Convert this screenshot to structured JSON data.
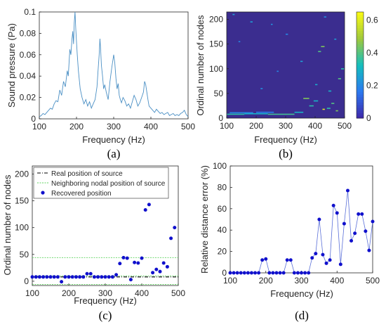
{
  "chart_data": [
    {
      "type": "line",
      "panel": "(a)",
      "xlabel": "Frequency (Hz)",
      "ylabel": "Sound pressure (Pa)",
      "xlim": [
        100,
        500
      ],
      "ylim": [
        0,
        0.1
      ],
      "xticks": [
        "100",
        "200",
        "300",
        "400",
        "500"
      ],
      "yticks": [
        "0",
        "0.02",
        "0.04",
        "0.06",
        "0.08",
        "0.1"
      ],
      "color": "#4a8fc4",
      "x": [
        100,
        105,
        110,
        115,
        120,
        125,
        130,
        135,
        140,
        145,
        150,
        155,
        160,
        165,
        170,
        175,
        178,
        182,
        185,
        188,
        190,
        192,
        194,
        196,
        198,
        200,
        202,
        205,
        210,
        215,
        220,
        225,
        230,
        235,
        240,
        245,
        250,
        255,
        258,
        261,
        263,
        265,
        267,
        270,
        273,
        276,
        280,
        285,
        290,
        295,
        300,
        303,
        306,
        309,
        312,
        315,
        318,
        321,
        325,
        330,
        335,
        340,
        345,
        350,
        355,
        360,
        365,
        370,
        375,
        380,
        383,
        386,
        389,
        392,
        395,
        400,
        405,
        410,
        415,
        420,
        425,
        430,
        435,
        440,
        445,
        450,
        455,
        460,
        465,
        470,
        475,
        480,
        485,
        490,
        495,
        500
      ],
      "y": [
        0.002,
        0.003,
        0.005,
        0.004,
        0.006,
        0.008,
        0.01,
        0.009,
        0.014,
        0.017,
        0.016,
        0.027,
        0.022,
        0.035,
        0.03,
        0.045,
        0.04,
        0.065,
        0.06,
        0.075,
        0.082,
        0.07,
        0.09,
        0.1,
        0.085,
        0.072,
        0.06,
        0.045,
        0.028,
        0.02,
        0.014,
        0.018,
        0.012,
        0.016,
        0.01,
        0.014,
        0.018,
        0.03,
        0.045,
        0.06,
        0.075,
        0.065,
        0.05,
        0.04,
        0.028,
        0.032,
        0.025,
        0.018,
        0.035,
        0.048,
        0.06,
        0.052,
        0.038,
        0.028,
        0.033,
        0.022,
        0.018,
        0.015,
        0.02,
        0.017,
        0.012,
        0.014,
        0.01,
        0.016,
        0.022,
        0.018,
        0.012,
        0.015,
        0.02,
        0.025,
        0.035,
        0.032,
        0.025,
        0.018,
        0.012,
        0.01,
        0.008,
        0.006,
        0.009,
        0.007,
        0.005,
        0.006,
        0.004,
        0.005,
        0.006,
        0.003,
        0.004,
        0.005,
        0.003,
        0.004,
        0.003,
        0.005,
        0.006,
        0.008,
        0.004,
        0.002
      ]
    },
    {
      "type": "heatmap",
      "panel": "(b)",
      "xlabel": "Frequency (Hz)",
      "ylabel": "Ordinal number of nodes",
      "xlim": [
        100,
        500
      ],
      "ylim": [
        0,
        215
      ],
      "xticks": [
        "100",
        "200",
        "300",
        "400",
        "500"
      ],
      "yticks": [
        "0",
        "50",
        "100",
        "150",
        "200"
      ],
      "colorbar_ticks": [
        "0",
        "0.2",
        "0.4",
        "0.6"
      ],
      "colorbar_range": [
        0,
        0.65
      ],
      "base_color": "#3b2d8f",
      "streaks": [
        {
          "x0": 100,
          "x1": 160,
          "y": 8,
          "v": 0.35
        },
        {
          "x0": 160,
          "x1": 240,
          "y": 9,
          "v": 0.3
        },
        {
          "x0": 240,
          "x1": 330,
          "y": 8,
          "v": 0.38
        },
        {
          "x0": 110,
          "x1": 190,
          "y": 11,
          "v": 0.2
        },
        {
          "x0": 200,
          "x1": 260,
          "y": 12,
          "v": 0.18
        },
        {
          "x0": 330,
          "x1": 360,
          "y": 12,
          "v": 0.3
        },
        {
          "x0": 360,
          "x1": 380,
          "y": 40,
          "v": 0.45
        },
        {
          "x0": 380,
          "x1": 395,
          "y": 25,
          "v": 0.35
        },
        {
          "x0": 395,
          "x1": 410,
          "y": 35,
          "v": 0.3
        },
        {
          "x0": 410,
          "x1": 420,
          "y": 135,
          "v": 0.4
        },
        {
          "x0": 420,
          "x1": 432,
          "y": 145,
          "v": 0.45
        },
        {
          "x0": 440,
          "x1": 452,
          "y": 20,
          "v": 0.35
        },
        {
          "x0": 455,
          "x1": 465,
          "y": 30,
          "v": 0.4
        },
        {
          "x0": 478,
          "x1": 488,
          "y": 80,
          "v": 0.4
        },
        {
          "x0": 488,
          "x1": 498,
          "y": 100,
          "v": 0.35
        },
        {
          "x0": 180,
          "x1": 188,
          "y": 195,
          "v": 0.25
        },
        {
          "x0": 250,
          "x1": 256,
          "y": 190,
          "v": 0.22
        },
        {
          "x0": 300,
          "x1": 308,
          "y": 170,
          "v": 0.2
        },
        {
          "x0": 140,
          "x1": 146,
          "y": 155,
          "v": 0.2
        },
        {
          "x0": 350,
          "x1": 358,
          "y": 115,
          "v": 0.25
        },
        {
          "x0": 400,
          "x1": 408,
          "y": 68,
          "v": 0.28
        },
        {
          "x0": 430,
          "x1": 438,
          "y": 205,
          "v": 0.22
        },
        {
          "x0": 465,
          "x1": 472,
          "y": 160,
          "v": 0.25
        },
        {
          "x0": 215,
          "x1": 222,
          "y": 60,
          "v": 0.22
        },
        {
          "x0": 270,
          "x1": 276,
          "y": 95,
          "v": 0.2
        },
        {
          "x0": 120,
          "x1": 127,
          "y": 210,
          "v": 0.25
        },
        {
          "x0": 445,
          "x1": 455,
          "y": 55,
          "v": 0.3
        },
        {
          "x0": 470,
          "x1": 478,
          "y": 15,
          "v": 0.45
        },
        {
          "x0": 425,
          "x1": 433,
          "y": 18,
          "v": 0.6
        }
      ]
    },
    {
      "type": "scatter",
      "panel": "(c)",
      "xlabel": "Frequency (Hz)",
      "ylabel": "Ordinal number of nodes",
      "xlim": [
        100,
        500
      ],
      "ylim": [
        -8,
        215
      ],
      "xticks": [
        "100",
        "200",
        "300",
        "400",
        "500"
      ],
      "yticks": [
        "0",
        "50",
        "100",
        "150",
        "200"
      ],
      "legend": [
        "Real position of source",
        "Neighboring nodal position of source",
        "Recovered position"
      ],
      "real_position": 8,
      "neighbor_positions": [
        -6,
        10,
        44
      ],
      "series": [
        {
          "name": "Recovered position",
          "x": [
            100,
            110,
            120,
            130,
            140,
            150,
            160,
            170,
            180,
            190,
            200,
            210,
            220,
            230,
            240,
            250,
            260,
            270,
            280,
            290,
            300,
            310,
            320,
            330,
            340,
            350,
            360,
            370,
            380,
            390,
            400,
            410,
            420,
            430,
            440,
            450,
            460,
            470,
            480,
            490
          ],
          "y": [
            8,
            8,
            8,
            8,
            8,
            8,
            8,
            8,
            -1,
            8,
            8,
            8,
            8,
            8,
            8,
            14,
            14,
            8,
            8,
            8,
            8,
            8,
            8,
            12,
            33,
            44,
            43,
            3,
            35,
            34,
            43,
            133,
            143,
            16,
            22,
            18,
            34,
            27,
            80,
            100
          ]
        }
      ]
    },
    {
      "type": "line",
      "panel": "(d)",
      "xlabel": "Frequency (Hz)",
      "ylabel": "Relative distance error (%)",
      "xlim": [
        100,
        500
      ],
      "ylim": [
        0,
        100
      ],
      "xticks": [
        "100",
        "200",
        "300",
        "400",
        "500"
      ],
      "yticks": [
        "0",
        "20",
        "40",
        "60",
        "80",
        "100"
      ],
      "series": [
        {
          "x": [
            100,
            110,
            120,
            130,
            140,
            150,
            160,
            170,
            180,
            190,
            200,
            210,
            220,
            230,
            240,
            250,
            260,
            270,
            280,
            290,
            300,
            310,
            320,
            330,
            340,
            350,
            360,
            370,
            380,
            390,
            400,
            410,
            420,
            430,
            440,
            450,
            460,
            470,
            480,
            490,
            500
          ],
          "y": [
            0,
            0,
            0,
            0,
            0,
            0,
            0,
            0,
            0,
            12,
            13,
            0,
            0,
            0,
            0,
            0,
            12,
            12,
            0,
            0,
            0,
            0,
            0,
            14,
            18,
            50,
            17,
            9,
            12,
            63,
            56,
            8,
            46,
            77,
            30,
            37,
            55,
            55,
            39,
            21,
            48
          ]
        }
      ]
    }
  ]
}
